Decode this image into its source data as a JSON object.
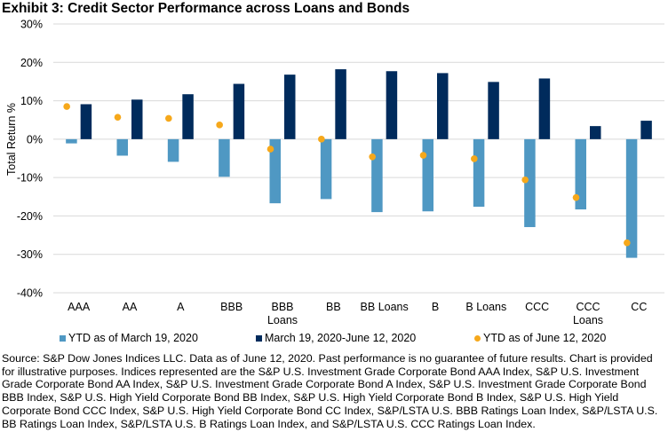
{
  "title": "Exhibit 3: Credit Sector Performance across Loans and Bonds",
  "chart_data": {
    "type": "bar",
    "title": "Exhibit 3: Credit Sector Performance across Loans and Bonds",
    "xlabel": "",
    "ylabel": "Total Return %",
    "ylim": [
      -40,
      30
    ],
    "yticks": [
      30,
      20,
      10,
      0,
      -10,
      -20,
      -30,
      -40
    ],
    "ytick_labels": [
      "30%",
      "20%",
      "10%",
      "0%",
      "-10%",
      "-20%",
      "-30%",
      "-40%"
    ],
    "grid": true,
    "legend_position": "bottom",
    "categories": [
      "AAA",
      "AA",
      "A",
      "BBB",
      "BBB Loans",
      "BB",
      "BB Loans",
      "B",
      "B Loans",
      "CCC",
      "CCC Loans",
      "CC"
    ],
    "category_labels": [
      [
        "AAA"
      ],
      [
        "AA"
      ],
      [
        "A"
      ],
      [
        "BBB"
      ],
      [
        "BBB",
        "Loans"
      ],
      [
        "BB"
      ],
      [
        "BB Loans"
      ],
      [
        "B"
      ],
      [
        "B Loans"
      ],
      [
        "CCC"
      ],
      [
        "CCC",
        "Loans"
      ],
      [
        "CC"
      ]
    ],
    "series": [
      {
        "name": "YTD as of March 19, 2020",
        "kind": "bar",
        "color": "#4F98C3",
        "values": [
          -1.1,
          -4.3,
          -5.9,
          -9.8,
          -16.7,
          -15.6,
          -19.0,
          -18.8,
          -17.6,
          -22.9,
          -18.3,
          -30.9
        ]
      },
      {
        "name": "March 19, 2020-June 12, 2020",
        "kind": "bar",
        "color": "#002B5C",
        "values": [
          9.1,
          10.3,
          11.7,
          14.4,
          16.8,
          18.2,
          17.7,
          17.2,
          14.9,
          15.8,
          3.4,
          4.8
        ]
      },
      {
        "name": "YTD as of June 12, 2020",
        "kind": "marker",
        "color": "#F6A81B",
        "values": [
          8.5,
          5.7,
          5.4,
          3.7,
          -2.6,
          0.0,
          -4.6,
          -4.2,
          -5.1,
          -10.6,
          -15.2,
          -27.0
        ]
      }
    ]
  },
  "legend": [
    {
      "label": "YTD as of March 19, 2020",
      "marker": "square",
      "color": "#4F98C3"
    },
    {
      "label": "March 19, 2020-June 12, 2020",
      "marker": "square",
      "color": "#002B5C"
    },
    {
      "label": "YTD as of June 12, 2020",
      "marker": "dot",
      "color": "#F6A81B"
    }
  ],
  "footnote": "Source: S&P Dow Jones Indices LLC. Data as of June 12, 2020. Past performance is no guarantee of future results. Chart is provided for illustrative purposes. Indices represented are the S&P U.S. Investment Grade Corporate Bond AAA Index, S&P U.S. Investment Grade Corporate Bond AA Index, S&P U.S. Investment Grade Corporate Bond A Index, S&P U.S. Investment Grade Corporate Bond BBB Index, S&P U.S. High Yield Corporate Bond BB Index, S&P U.S. High Yield Corporate Bond B Index, S&P U.S. High Yield Corporate Bond CCC Index, S&P U.S. High Yield Corporate Bond CC Index, S&P/LSTA U.S. BBB Ratings Loan Index, S&P/LSTA U.S. BB Ratings Loan Index, S&P/LSTA U.S. B Ratings Loan Index, and S&P/LSTA U.S. CCC Ratings Loan Index."
}
